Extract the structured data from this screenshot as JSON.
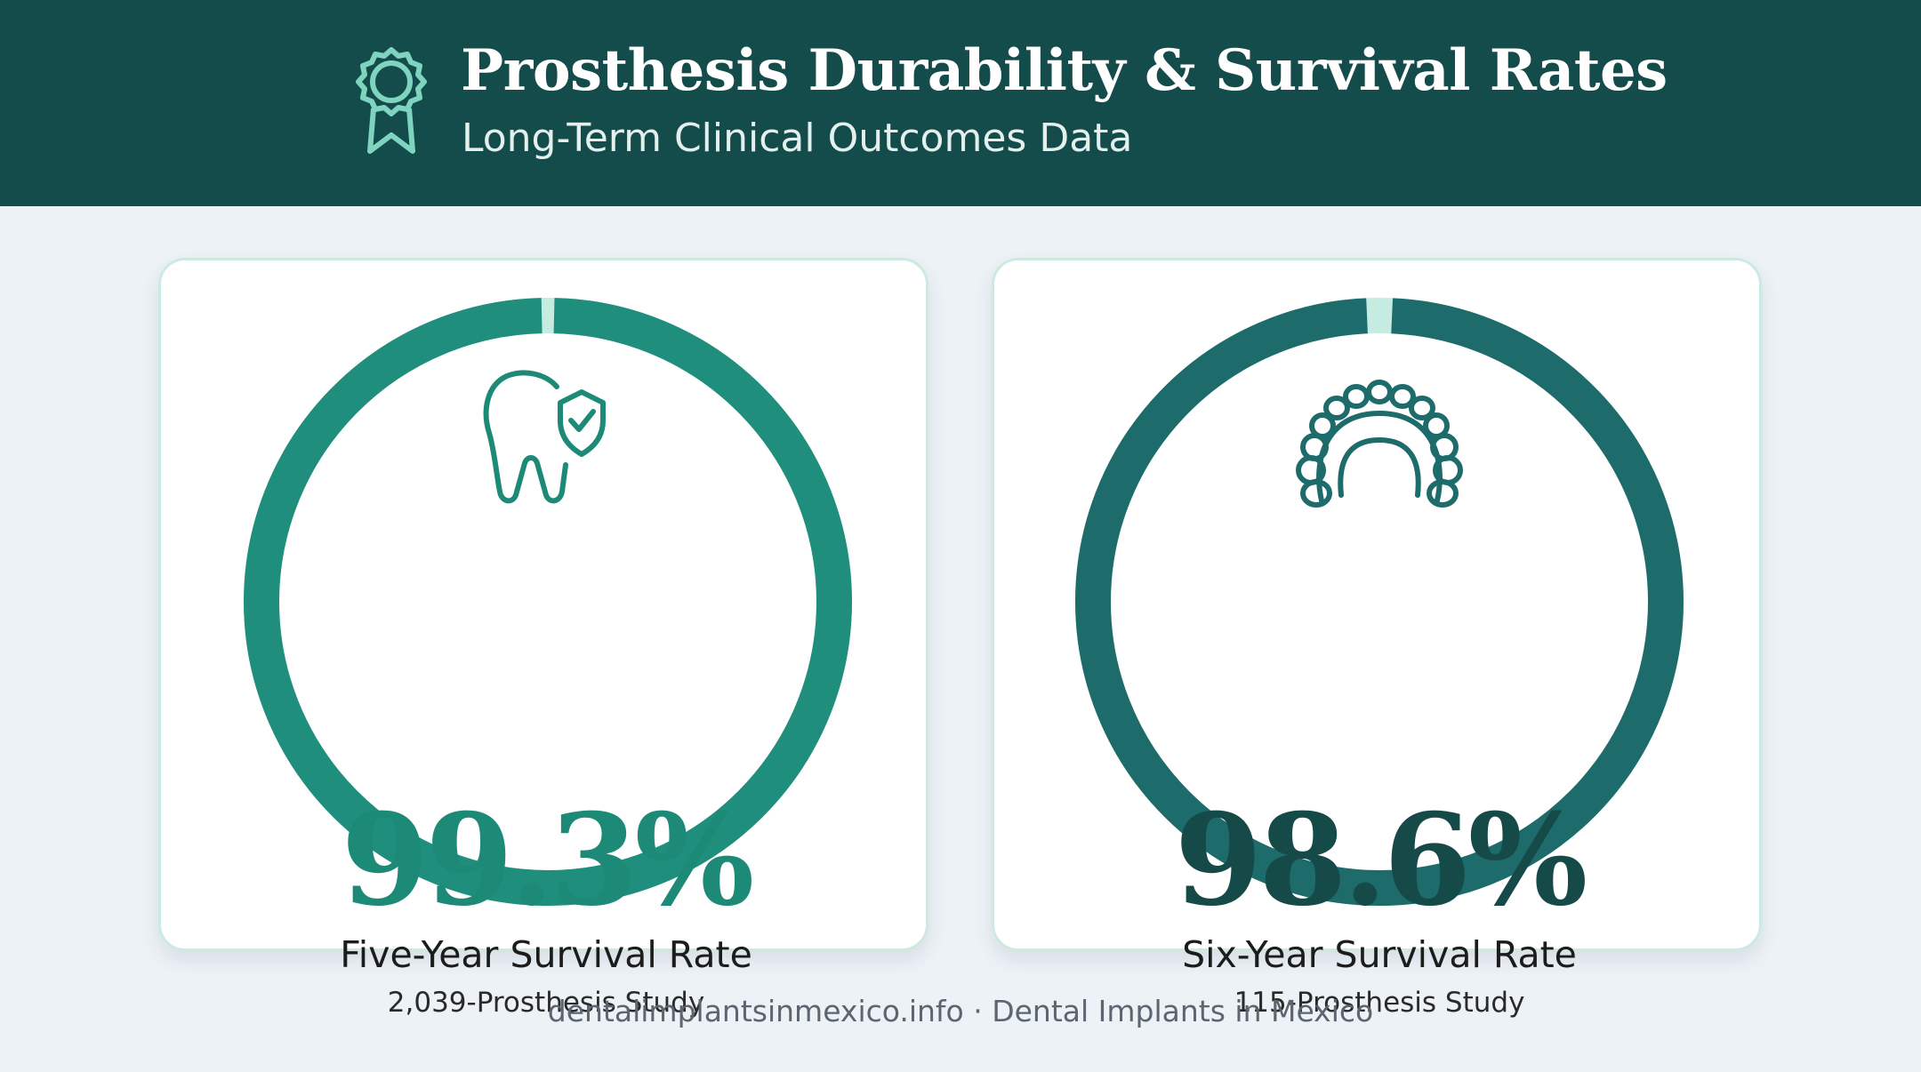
{
  "header": {
    "title": "Prosthesis Durability & Survival Rates",
    "subtitle": "Long-Term Clinical Outcomes Data",
    "icon": "award-ribbon-icon"
  },
  "colors": {
    "header_bg": "#134c4a",
    "ring_left": "#1f8e7c",
    "ring_right": "#1e6b6b",
    "ring_gap": "#c6ece2",
    "pct_left": "#1d8a78",
    "pct_right": "#164a48",
    "icon_left": "#1d8a78",
    "icon_right": "#1e6b6b"
  },
  "chart_data": [
    {
      "type": "pie",
      "values": [
        99.3,
        0.7
      ],
      "value_label": "99.3%",
      "label": "Five-Year Survival Rate",
      "study": "2,039-Prosthesis Study",
      "icon": "tooth-shield-icon"
    },
    {
      "type": "pie",
      "values": [
        98.6,
        1.4
      ],
      "value_label": "98.6%",
      "label": "Six-Year Survival Rate",
      "study": "115-Prosthesis Study",
      "icon": "dental-arch-icon"
    }
  ],
  "footer": "dentalimplantsinmexico.info · Dental Implants in Mexico"
}
